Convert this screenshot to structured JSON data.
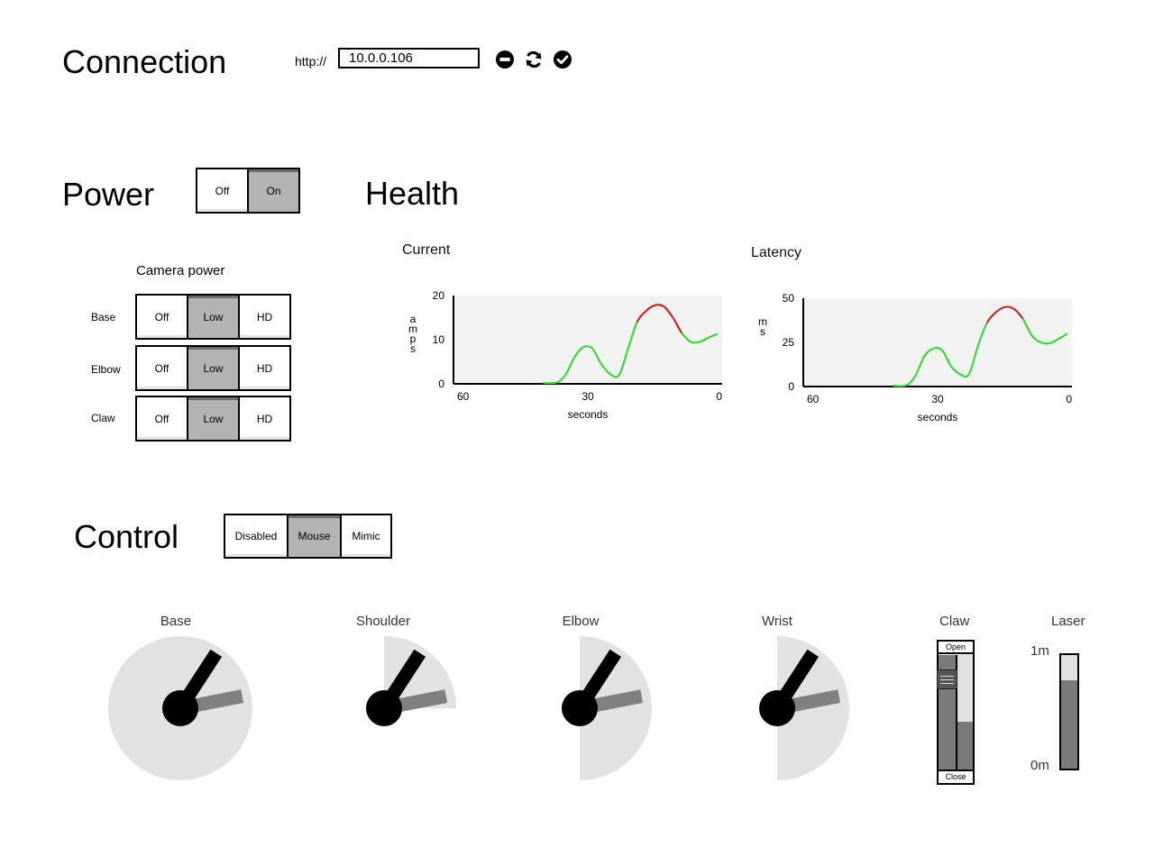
{
  "connection": {
    "title": "Connection",
    "prefix": "http://",
    "address": "10.0.0.106",
    "icons": [
      "minus-circle-icon",
      "refresh-icon",
      "check-circle-icon"
    ]
  },
  "power": {
    "title": "Power",
    "options": [
      "Off",
      "On"
    ],
    "selected": "On"
  },
  "health": {
    "title": "Health"
  },
  "camera_power": {
    "title": "Camera power",
    "rows": [
      {
        "label": "Base",
        "options": [
          "Off",
          "Low",
          "HD"
        ],
        "selected": "Low"
      },
      {
        "label": "Elbow",
        "options": [
          "Off",
          "Low",
          "HD"
        ],
        "selected": "Low"
      },
      {
        "label": "Claw",
        "options": [
          "Off",
          "Low",
          "HD"
        ],
        "selected": "Low"
      }
    ]
  },
  "control": {
    "title": "Control",
    "options": [
      "Disabled",
      "Mouse",
      "Mimic"
    ],
    "selected": "Mouse"
  },
  "joints": {
    "base": "Base",
    "shoulder": "Shoulder",
    "elbow": "Elbow",
    "wrist": "Wrist"
  },
  "claw": {
    "title": "Claw",
    "open_label": "Open",
    "close_label": "Close",
    "level": 0.42
  },
  "laser": {
    "title": "Laser",
    "max_label": "1m",
    "min_label": "0m",
    "level": 0.78
  },
  "colors": {
    "toggle_active": "#b3b3b3",
    "chart_bg": "#f2f2f2",
    "line_ok": "#22dd22",
    "line_alert": "#dd1111",
    "dial_bg": "#e2e2e2",
    "needle_current": "#000000",
    "needle_target": "#808080"
  },
  "chart_data": [
    {
      "type": "line",
      "title": "Current",
      "ylabel": "amps",
      "xlabel": "seconds",
      "x_ticks": [
        "60",
        "30",
        "0"
      ],
      "y_ticks": [
        "20",
        "10",
        "0"
      ],
      "xlim": [
        60,
        0
      ],
      "ylim": [
        0,
        20
      ],
      "threshold": 13,
      "x": [
        40,
        37,
        35,
        33,
        31,
        29,
        27,
        25,
        23,
        21,
        19,
        17,
        15,
        13,
        11,
        9,
        7,
        5,
        3,
        1
      ],
      "values": [
        0.2,
        0.3,
        2,
        6,
        8.3,
        8,
        4.5,
        2.2,
        2,
        8,
        14,
        16.5,
        17.8,
        17.5,
        15,
        11.5,
        9.5,
        9.5,
        10.5,
        11.3
      ]
    },
    {
      "type": "line",
      "title": "Latency",
      "ylabel": "ms",
      "xlabel": "seconds",
      "x_ticks": [
        "60",
        "30",
        "0"
      ],
      "y_ticks": [
        "50",
        "25",
        "0"
      ],
      "xlim": [
        60,
        0
      ],
      "ylim": [
        0,
        50
      ],
      "threshold": 35,
      "x": [
        40,
        37,
        35,
        33,
        31,
        29,
        27,
        25,
        23,
        21,
        19,
        17,
        15,
        13,
        11,
        9,
        7,
        5,
        3,
        1
      ],
      "values": [
        0.5,
        0.7,
        6,
        17,
        21.5,
        20.5,
        11.5,
        7,
        7,
        23,
        36,
        42,
        45,
        44,
        38.5,
        29,
        25,
        24.5,
        27,
        30
      ]
    }
  ],
  "gauges": [
    {
      "name": "Base",
      "min_deg": 0,
      "max_deg": 360,
      "current_deg": 57,
      "target_deg": 11
    },
    {
      "name": "Shoulder",
      "min_deg": 0,
      "max_deg": 90,
      "current_deg": 57,
      "target_deg": 11
    },
    {
      "name": "Elbow",
      "min_deg": -90,
      "max_deg": 90,
      "current_deg": 57,
      "target_deg": 11
    },
    {
      "name": "Wrist",
      "min_deg": -90,
      "max_deg": 90,
      "current_deg": 57,
      "target_deg": 11
    }
  ]
}
